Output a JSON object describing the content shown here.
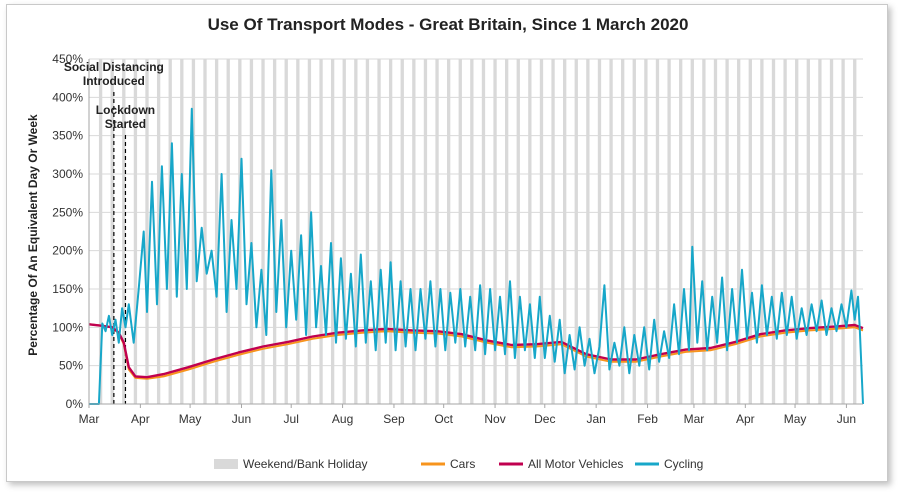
{
  "chart_data": {
    "type": "line",
    "title": "Use Of Transport Modes - Great Britain, Since 1 March 2020",
    "ylabel": "Percentage Of An Equivalent Day Or Week",
    "xlabel": "",
    "ylim": [
      0,
      450
    ],
    "y_ticks": [
      "0%",
      "50%",
      "100%",
      "150%",
      "200%",
      "250%",
      "300%",
      "350%",
      "400%",
      "450%"
    ],
    "x_ticks": [
      "Mar",
      "Apr",
      "May",
      "Jun",
      "Jul",
      "Aug",
      "Sep",
      "Oct",
      "Nov",
      "Dec",
      "Jan",
      "Feb",
      "Mar",
      "Apr",
      "May",
      "Jun"
    ],
    "x_tick_days": [
      0,
      31,
      61,
      92,
      122,
      153,
      184,
      214,
      245,
      275,
      306,
      337,
      365,
      396,
      426,
      457
    ],
    "total_days": 467,
    "annotations": [
      {
        "label_lines": [
          "Social Distancing",
          "Introduced"
        ],
        "day": 15
      },
      {
        "label_lines": [
          "Lockdown",
          "Started"
        ],
        "day": 22
      }
    ],
    "legend": [
      "Weekend/Bank Holiday",
      "Cars",
      "All Motor Vehicles",
      "Cycling"
    ],
    "colors": {
      "weekend": "#d9d9d9",
      "cars": "#f7941d",
      "all_motor": "#c0004f",
      "cycling": "#17a7c9",
      "grid": "#d9d9d9",
      "axis": "#a6a6a6"
    },
    "series": [
      {
        "name": "Cars",
        "points": [
          [
            0,
            104
          ],
          [
            8,
            102
          ],
          [
            14,
            100
          ],
          [
            18,
            92
          ],
          [
            21,
            78
          ],
          [
            24,
            45
          ],
          [
            28,
            34
          ],
          [
            35,
            33
          ],
          [
            45,
            36
          ],
          [
            60,
            45
          ],
          [
            75,
            55
          ],
          [
            90,
            64
          ],
          [
            105,
            72
          ],
          [
            120,
            78
          ],
          [
            135,
            85
          ],
          [
            150,
            90
          ],
          [
            165,
            93
          ],
          [
            180,
            95
          ],
          [
            195,
            93
          ],
          [
            210,
            92
          ],
          [
            225,
            88
          ],
          [
            240,
            80
          ],
          [
            255,
            74
          ],
          [
            270,
            75
          ],
          [
            285,
            78
          ],
          [
            300,
            62
          ],
          [
            315,
            55
          ],
          [
            330,
            55
          ],
          [
            345,
            62
          ],
          [
            360,
            68
          ],
          [
            375,
            70
          ],
          [
            390,
            78
          ],
          [
            405,
            88
          ],
          [
            420,
            93
          ],
          [
            435,
            96
          ],
          [
            450,
            98
          ],
          [
            462,
            100
          ],
          [
            467,
            96
          ]
        ]
      },
      {
        "name": "All Motor Vehicles",
        "points": [
          [
            0,
            104
          ],
          [
            8,
            102
          ],
          [
            14,
            100
          ],
          [
            18,
            93
          ],
          [
            21,
            80
          ],
          [
            24,
            48
          ],
          [
            28,
            36
          ],
          [
            35,
            35
          ],
          [
            45,
            39
          ],
          [
            60,
            48
          ],
          [
            75,
            58
          ],
          [
            90,
            67
          ],
          [
            105,
            75
          ],
          [
            120,
            81
          ],
          [
            135,
            88
          ],
          [
            150,
            93
          ],
          [
            165,
            96
          ],
          [
            180,
            98
          ],
          [
            195,
            96
          ],
          [
            210,
            95
          ],
          [
            225,
            91
          ],
          [
            240,
            83
          ],
          [
            255,
            77
          ],
          [
            270,
            78
          ],
          [
            285,
            81
          ],
          [
            300,
            65
          ],
          [
            315,
            58
          ],
          [
            330,
            58
          ],
          [
            345,
            65
          ],
          [
            360,
            71
          ],
          [
            375,
            73
          ],
          [
            390,
            81
          ],
          [
            405,
            91
          ],
          [
            420,
            96
          ],
          [
            435,
            99
          ],
          [
            450,
            101
          ],
          [
            462,
            103
          ],
          [
            467,
            99
          ]
        ]
      },
      {
        "name": "Cycling",
        "points": [
          [
            0,
            0
          ],
          [
            6,
            0
          ],
          [
            8,
            105
          ],
          [
            10,
            95
          ],
          [
            12,
            115
          ],
          [
            14,
            90
          ],
          [
            16,
            110
          ],
          [
            18,
            80
          ],
          [
            20,
            125
          ],
          [
            22,
            100
          ],
          [
            24,
            130
          ],
          [
            27,
            80
          ],
          [
            30,
            150
          ],
          [
            33,
            225
          ],
          [
            35,
            120
          ],
          [
            38,
            290
          ],
          [
            41,
            130
          ],
          [
            44,
            310
          ],
          [
            47,
            150
          ],
          [
            50,
            340
          ],
          [
            53,
            140
          ],
          [
            56,
            300
          ],
          [
            59,
            150
          ],
          [
            62,
            385
          ],
          [
            65,
            160
          ],
          [
            68,
            230
          ],
          [
            71,
            170
          ],
          [
            74,
            200
          ],
          [
            77,
            140
          ],
          [
            80,
            300
          ],
          [
            83,
            120
          ],
          [
            86,
            240
          ],
          [
            89,
            150
          ],
          [
            92,
            320
          ],
          [
            95,
            130
          ],
          [
            98,
            210
          ],
          [
            101,
            100
          ],
          [
            104,
            175
          ],
          [
            107,
            90
          ],
          [
            110,
            305
          ],
          [
            113,
            120
          ],
          [
            116,
            240
          ],
          [
            119,
            100
          ],
          [
            122,
            200
          ],
          [
            125,
            110
          ],
          [
            128,
            220
          ],
          [
            131,
            90
          ],
          [
            134,
            250
          ],
          [
            137,
            100
          ],
          [
            140,
            180
          ],
          [
            143,
            90
          ],
          [
            146,
            210
          ],
          [
            149,
            80
          ],
          [
            152,
            190
          ],
          [
            155,
            85
          ],
          [
            158,
            170
          ],
          [
            161,
            75
          ],
          [
            164,
            195
          ],
          [
            167,
            80
          ],
          [
            170,
            160
          ],
          [
            173,
            70
          ],
          [
            176,
            175
          ],
          [
            179,
            80
          ],
          [
            182,
            185
          ],
          [
            185,
            70
          ],
          [
            188,
            160
          ],
          [
            191,
            75
          ],
          [
            194,
            150
          ],
          [
            197,
            70
          ],
          [
            200,
            150
          ],
          [
            203,
            85
          ],
          [
            206,
            160
          ],
          [
            209,
            75
          ],
          [
            212,
            150
          ],
          [
            215,
            70
          ],
          [
            218,
            145
          ],
          [
            221,
            80
          ],
          [
            224,
            150
          ],
          [
            227,
            75
          ],
          [
            230,
            140
          ],
          [
            233,
            70
          ],
          [
            236,
            155
          ],
          [
            239,
            65
          ],
          [
            242,
            150
          ],
          [
            245,
            70
          ],
          [
            248,
            140
          ],
          [
            251,
            65
          ],
          [
            254,
            160
          ],
          [
            257,
            60
          ],
          [
            260,
            140
          ],
          [
            263,
            70
          ],
          [
            266,
            130
          ],
          [
            269,
            60
          ],
          [
            272,
            140
          ],
          [
            275,
            60
          ],
          [
            278,
            115
          ],
          [
            281,
            55
          ],
          [
            284,
            110
          ],
          [
            287,
            40
          ],
          [
            290,
            90
          ],
          [
            293,
            45
          ],
          [
            296,
            100
          ],
          [
            299,
            50
          ],
          [
            302,
            85
          ],
          [
            305,
            40
          ],
          [
            308,
            75
          ],
          [
            311,
            155
          ],
          [
            314,
            45
          ],
          [
            317,
            80
          ],
          [
            320,
            50
          ],
          [
            323,
            100
          ],
          [
            326,
            40
          ],
          [
            329,
            90
          ],
          [
            332,
            50
          ],
          [
            335,
            100
          ],
          [
            338,
            45
          ],
          [
            341,
            110
          ],
          [
            344,
            55
          ],
          [
            347,
            95
          ],
          [
            350,
            60
          ],
          [
            353,
            130
          ],
          [
            356,
            65
          ],
          [
            359,
            150
          ],
          [
            362,
            70
          ],
          [
            364,
            205
          ],
          [
            367,
            80
          ],
          [
            370,
            160
          ],
          [
            373,
            70
          ],
          [
            376,
            140
          ],
          [
            379,
            80
          ],
          [
            382,
            165
          ],
          [
            385,
            70
          ],
          [
            388,
            150
          ],
          [
            391,
            80
          ],
          [
            394,
            175
          ],
          [
            397,
            85
          ],
          [
            400,
            145
          ],
          [
            403,
            80
          ],
          [
            406,
            155
          ],
          [
            409,
            90
          ],
          [
            412,
            140
          ],
          [
            415,
            85
          ],
          [
            418,
            145
          ],
          [
            421,
            90
          ],
          [
            424,
            140
          ],
          [
            427,
            85
          ],
          [
            430,
            125
          ],
          [
            433,
            90
          ],
          [
            436,
            130
          ],
          [
            439,
            95
          ],
          [
            442,
            135
          ],
          [
            445,
            90
          ],
          [
            448,
            125
          ],
          [
            451,
            95
          ],
          [
            454,
            130
          ],
          [
            457,
            100
          ],
          [
            460,
            148
          ],
          [
            462,
            110
          ],
          [
            464,
            140
          ],
          [
            465,
            100
          ],
          [
            467,
            0
          ]
        ]
      }
    ]
  }
}
